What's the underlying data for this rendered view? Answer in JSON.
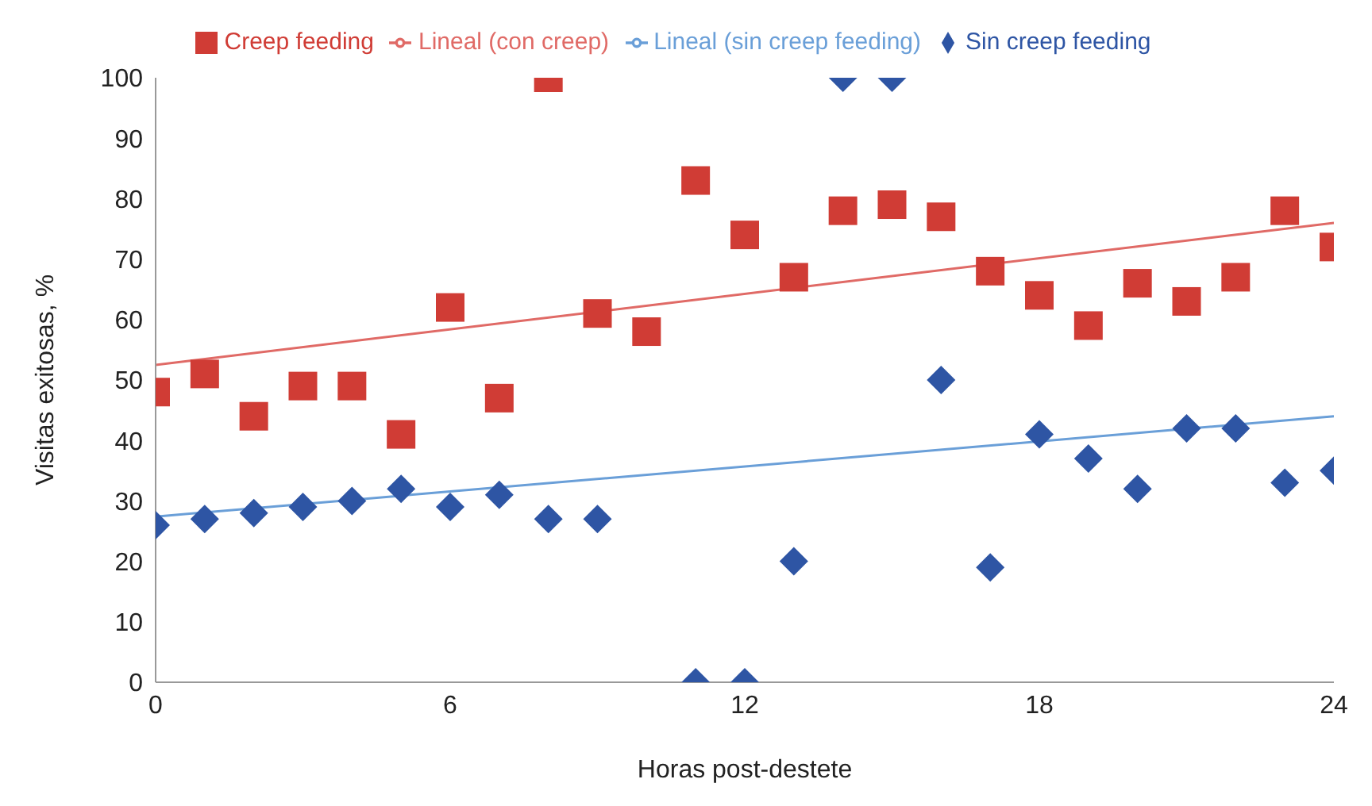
{
  "chart_data": {
    "type": "scatter",
    "xlabel": "Horas post-destete",
    "ylabel": "Visitas exitosas, %",
    "xlim": [
      0,
      24
    ],
    "xticks": [
      0,
      6,
      12,
      18,
      24
    ],
    "ylim": [
      0,
      100
    ],
    "yticks": [
      0,
      10,
      20,
      30,
      40,
      50,
      60,
      70,
      80,
      90,
      100
    ],
    "grid": false,
    "legend": "top",
    "series": [
      {
        "name": "Sin creep feeding",
        "color": "#2e55a4",
        "marker": "diamond",
        "x": [
          0,
          1,
          2,
          3,
          4,
          5,
          6,
          7,
          8,
          9,
          10,
          11,
          12,
          13,
          14,
          15,
          16,
          17,
          18,
          19,
          20,
          21,
          22,
          23,
          24
        ],
        "values": [
          26,
          27,
          28,
          29,
          30,
          32,
          29,
          31,
          27,
          27,
          null,
          0,
          0,
          20,
          100,
          100,
          50,
          19,
          41,
          37,
          32,
          42,
          42,
          33,
          35
        ]
      },
      {
        "name": "Creep feeding",
        "color": "#d03c35",
        "marker": "square",
        "x": [
          0,
          1,
          2,
          3,
          4,
          5,
          6,
          7,
          8,
          9,
          10,
          11,
          12,
          13,
          14,
          15,
          16,
          17,
          18,
          19,
          20,
          21,
          22,
          23,
          24
        ],
        "values": [
          48,
          51,
          44,
          49,
          49,
          41,
          62,
          47,
          100,
          61,
          58,
          83,
          74,
          67,
          78,
          79,
          77,
          68,
          64,
          59,
          66,
          63,
          67,
          78,
          72
        ]
      },
      {
        "name": "Lineal (sin creep feeding)",
        "type": "line",
        "color": "#6a9fd8",
        "marker": "none",
        "x": [
          0,
          24
        ],
        "values": [
          27.4,
          44
        ]
      },
      {
        "name": "Lineal (con creep)",
        "type": "line",
        "color": "#e06a66",
        "marker": "none",
        "x": [
          0,
          24
        ],
        "values": [
          52.5,
          76
        ]
      }
    ]
  }
}
